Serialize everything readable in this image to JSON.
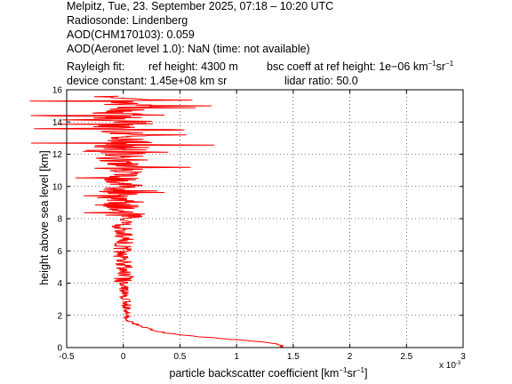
{
  "header": {
    "line1": "Melpitz, Tue, 23. September 2025, 07:18 – 10:20 UTC",
    "line2": "Radiosonde: Lindenberg",
    "line3": "AOD(CHM170103): 0.059",
    "line4": "AOD(Aeronet level 1.0): NaN   (time: not available)",
    "rayleigh_label": "Rayleigh fit:",
    "ref_height": "ref height: 4300 m",
    "bsc_coeff_prefix": "bsc coeff at ref height: 1e−06 km",
    "bsc_coeff_sup1": "−1",
    "bsc_coeff_mid": "sr",
    "bsc_coeff_sup2": "−1",
    "device_constant": "device constant: 1.45e+08 km sr",
    "lidar_ratio": "lidar ratio: 50.0"
  },
  "chart_data": {
    "type": "line",
    "xlabel_prefix": "particle backscatter coefficient [km",
    "xlabel_sup1": "−1",
    "xlabel_mid": "sr",
    "xlabel_sup2": "−1",
    "xlabel_suffix": "]",
    "ylabel": "height above sea level [km]",
    "x_multiplier_label": "x 10",
    "x_multiplier_exp": "-3",
    "xlim": [
      -0.5,
      3
    ],
    "ylim": [
      0,
      16
    ],
    "x_ticks": [
      "-0.5",
      "0",
      "0.5",
      "1",
      "1.5",
      "2",
      "2.5",
      "3"
    ],
    "y_ticks": [
      "0",
      "2",
      "4",
      "6",
      "8",
      "10",
      "12",
      "14",
      "16"
    ],
    "grid": true,
    "line_color": "#ff0000",
    "series": [
      {
        "profile": [
          [
            1.38,
            0.0
          ],
          [
            1.41,
            0.1
          ],
          [
            1.36,
            0.2
          ],
          [
            1.28,
            0.3
          ],
          [
            1.15,
            0.4
          ],
          [
            0.97,
            0.5
          ],
          [
            0.8,
            0.6
          ],
          [
            0.62,
            0.7
          ],
          [
            0.48,
            0.8
          ],
          [
            0.38,
            0.9
          ],
          [
            0.31,
            1.0
          ],
          [
            0.25,
            1.1
          ],
          [
            0.21,
            1.2
          ],
          [
            0.17,
            1.3
          ],
          [
            0.13,
            1.4
          ],
          [
            0.1,
            1.5
          ],
          [
            0.06,
            1.6
          ],
          [
            0.04,
            1.7
          ],
          [
            0.03,
            1.8
          ],
          [
            0.02,
            2.0
          ],
          [
            0.03,
            2.5
          ],
          [
            0.02,
            3.0
          ],
          [
            0.01,
            3.5
          ],
          [
            0.0,
            4.0
          ],
          [
            0.0,
            4.5
          ],
          [
            -0.01,
            5.0
          ],
          [
            0.0,
            5.5
          ],
          [
            -0.01,
            6.0
          ],
          [
            0.01,
            6.5
          ],
          [
            0.0,
            7.0
          ],
          [
            -0.01,
            7.5
          ],
          [
            0.0,
            8.0
          ],
          [
            -0.02,
            8.5
          ],
          [
            0.0,
            9.0
          ],
          [
            -0.02,
            9.5
          ],
          [
            0.0,
            10.0
          ],
          [
            -0.01,
            10.5
          ],
          [
            0.0,
            11.0
          ],
          [
            -0.01,
            11.5
          ],
          [
            0.0,
            12.0
          ],
          [
            -0.01,
            12.5
          ],
          [
            0.0,
            13.0
          ],
          [
            -0.01,
            13.5
          ],
          [
            0.0,
            14.0
          ],
          [
            -0.01,
            14.5
          ],
          [
            0.0,
            15.0
          ],
          [
            0.0,
            15.5
          ]
        ]
      }
    ]
  }
}
